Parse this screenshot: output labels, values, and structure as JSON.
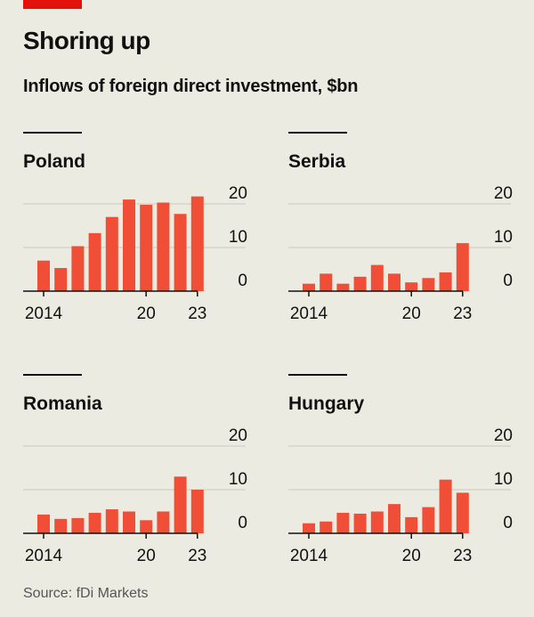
{
  "title": "Shoring up",
  "subtitle": "Inflows of foreign direct investment, $bn",
  "source": "Source: fDi Markets",
  "colors": {
    "bar": "#f04e36",
    "accent": "#e3120b",
    "grid": "#c9c8bf",
    "text": "#111111",
    "source": "#555555"
  },
  "chart_data": [
    {
      "type": "bar",
      "title": "Poland",
      "years": [
        2014,
        2015,
        2016,
        2017,
        2018,
        2019,
        2020,
        2021,
        2022,
        2023
      ],
      "values": [
        7,
        5.3,
        10.3,
        13.3,
        17,
        21,
        19.8,
        20.3,
        17.7,
        21.7
      ],
      "ylim": [
        0,
        20
      ],
      "yticks": [
        "20",
        "10",
        "0"
      ],
      "xtick_labels": [
        {
          "year": 2014,
          "label": "2014"
        },
        {
          "year": 2020,
          "label": "20"
        },
        {
          "year": 2023,
          "label": "23"
        }
      ]
    },
    {
      "type": "bar",
      "title": "Serbia",
      "years": [
        2014,
        2015,
        2016,
        2017,
        2018,
        2019,
        2020,
        2021,
        2022,
        2023
      ],
      "values": [
        1.7,
        4,
        1.7,
        3.3,
        6,
        4,
        2,
        3,
        4.3,
        11
      ],
      "ylim": [
        0,
        20
      ],
      "yticks": [
        "20",
        "10",
        "0"
      ],
      "xtick_labels": [
        {
          "year": 2014,
          "label": "2014"
        },
        {
          "year": 2020,
          "label": "20"
        },
        {
          "year": 2023,
          "label": "23"
        }
      ]
    },
    {
      "type": "bar",
      "title": "Romania",
      "years": [
        2014,
        2015,
        2016,
        2017,
        2018,
        2019,
        2020,
        2021,
        2022,
        2023
      ],
      "values": [
        4.3,
        3.3,
        3.5,
        4.7,
        5.5,
        5,
        3,
        5,
        13,
        10
      ],
      "ylim": [
        0,
        20
      ],
      "yticks": [
        "20",
        "10",
        "0"
      ],
      "xtick_labels": [
        {
          "year": 2014,
          "label": "2014"
        },
        {
          "year": 2020,
          "label": "20"
        },
        {
          "year": 2023,
          "label": "23"
        }
      ]
    },
    {
      "type": "bar",
      "title": "Hungary",
      "years": [
        2014,
        2015,
        2016,
        2017,
        2018,
        2019,
        2020,
        2021,
        2022,
        2023
      ],
      "values": [
        2.3,
        2.7,
        4.7,
        4.5,
        5,
        6.7,
        3.7,
        6,
        12.3,
        9.3
      ],
      "ylim": [
        0,
        20
      ],
      "yticks": [
        "20",
        "10",
        "0"
      ],
      "xtick_labels": [
        {
          "year": 2014,
          "label": "2014"
        },
        {
          "year": 2020,
          "label": "20"
        },
        {
          "year": 2023,
          "label": "23"
        }
      ]
    }
  ]
}
